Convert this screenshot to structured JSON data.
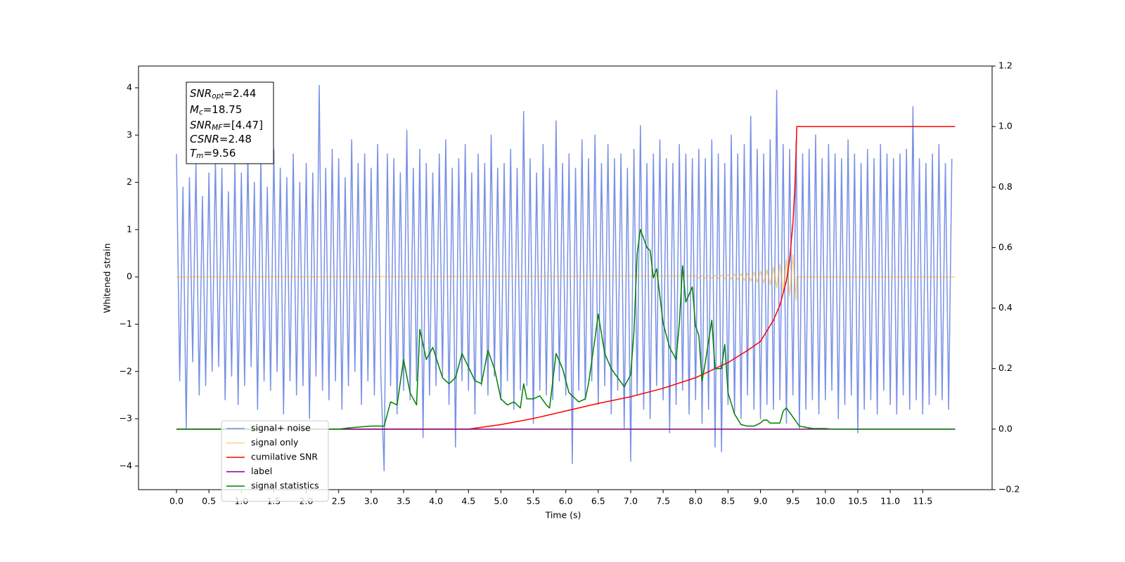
{
  "chart_data": {
    "type": "line",
    "xlabel": "Time (s)",
    "ylabel": "Whitened strain",
    "xlim": [
      -0.585,
      12.57
    ],
    "ylim": [
      -4.5,
      4.46
    ],
    "y2lim": [
      -0.2,
      1.2
    ],
    "xticks": [
      {
        "value": 0,
        "label": "0.0"
      },
      0.5,
      {
        "value": 1,
        "label": "1.0"
      },
      1.5,
      {
        "value": 2,
        "label": "2.0"
      },
      2.5,
      {
        "value": 3,
        "label": "3.0"
      },
      3.5,
      {
        "value": 4,
        "label": "4.0"
      },
      4.5,
      {
        "value": 5,
        "label": "5.0"
      },
      5.5,
      {
        "value": 6,
        "label": "6.0"
      },
      6.5,
      {
        "value": 7,
        "label": "7.0"
      },
      7.5,
      {
        "value": 8,
        "label": "8.0"
      },
      8.5,
      {
        "value": 9,
        "label": "9.0"
      },
      9.5,
      {
        "value": 10,
        "label": "10.0"
      },
      10.5,
      {
        "value": 11,
        "label": "11.0"
      },
      11.5
    ],
    "yticks": [
      {
        "value": -4,
        "label": "−4"
      },
      {
        "value": -3,
        "label": "−3"
      },
      {
        "value": -2,
        "label": "−2"
      },
      {
        "value": -1,
        "label": "−1"
      },
      0,
      1,
      2,
      3,
      4
    ],
    "y2ticks": [
      {
        "value": -0.2,
        "label": "−0.2"
      },
      {
        "value": 0,
        "label": "0.0"
      },
      0.2,
      0.4,
      0.6,
      0.8,
      {
        "value": 1,
        "label": "1.0"
      },
      1.2
    ],
    "legend": "lower left",
    "annotations": [
      {
        "base": "SNR",
        "sub": "opt",
        "rest": "=2.44"
      },
      {
        "base": "M",
        "sub": "c",
        "rest": "=18.75"
      },
      {
        "base": "SNR",
        "sub": "MF",
        "rest": "=[4.47]"
      },
      {
        "base": "CSNR",
        "rest": "=2.48"
      },
      {
        "base": "T",
        "sub": "m",
        "rest": "=9.56"
      }
    ],
    "series": [
      {
        "name": "signal+ noise",
        "color": "#7891e6",
        "x": [
          0,
          0.05,
          0.1,
          0.15,
          0.2,
          0.25,
          0.3,
          0.35,
          0.4,
          0.45,
          0.5,
          0.55,
          0.6,
          0.65,
          0.7,
          0.75,
          0.8,
          0.85,
          0.9,
          0.95,
          1,
          1.05,
          1.1,
          1.15,
          1.2,
          1.25,
          1.3,
          1.35,
          1.4,
          1.45,
          1.5,
          1.55,
          1.6,
          1.65,
          1.7,
          1.75,
          1.8,
          1.85,
          1.9,
          1.95,
          2,
          2.05,
          2.1,
          2.15,
          2.2,
          2.25,
          2.3,
          2.35,
          2.4,
          2.45,
          2.5,
          2.55,
          2.6,
          2.65,
          2.7,
          2.75,
          2.8,
          2.85,
          2.9,
          2.95,
          3,
          3.05,
          3.1,
          3.15,
          3.2,
          3.25,
          3.3,
          3.35,
          3.4,
          3.45,
          3.5,
          3.55,
          3.6,
          3.65,
          3.7,
          3.75,
          3.8,
          3.85,
          3.9,
          3.95,
          4,
          4.05,
          4.1,
          4.15,
          4.2,
          4.25,
          4.3,
          4.35,
          4.4,
          4.45,
          4.5,
          4.55,
          4.6,
          4.65,
          4.7,
          4.75,
          4.8,
          4.85,
          4.9,
          4.95,
          5,
          5.05,
          5.1,
          5.15,
          5.2,
          5.25,
          5.3,
          5.35,
          5.4,
          5.45,
          5.5,
          5.55,
          5.6,
          5.65,
          5.7,
          5.75,
          5.8,
          5.85,
          5.9,
          5.95,
          6,
          6.05,
          6.1,
          6.15,
          6.2,
          6.25,
          6.3,
          6.35,
          6.4,
          6.45,
          6.5,
          6.55,
          6.6,
          6.65,
          6.7,
          6.75,
          6.8,
          6.85,
          6.9,
          6.95,
          7,
          7.05,
          7.1,
          7.15,
          7.2,
          7.25,
          7.3,
          7.35,
          7.4,
          7.45,
          7.5,
          7.55,
          7.6,
          7.65,
          7.7,
          7.75,
          7.8,
          7.85,
          7.9,
          7.95,
          8,
          8.05,
          8.1,
          8.15,
          8.2,
          8.25,
          8.3,
          8.35,
          8.4,
          8.45,
          8.5,
          8.55,
          8.6,
          8.65,
          8.7,
          8.75,
          8.8,
          8.85,
          8.9,
          8.95,
          9,
          9.05,
          9.1,
          9.15,
          9.2,
          9.25,
          9.3,
          9.35,
          9.4,
          9.45,
          9.5,
          9.55,
          9.6,
          9.65,
          9.7,
          9.75,
          9.8,
          9.85,
          9.9,
          9.95,
          10,
          10.05,
          10.1,
          10.15,
          10.2,
          10.25,
          10.3,
          10.35,
          10.4,
          10.45,
          10.5,
          10.55,
          10.6,
          10.65,
          10.7,
          10.75,
          10.8,
          10.85,
          10.9,
          10.95,
          11,
          11.05,
          11.1,
          11.15,
          11.2,
          11.25,
          11.3,
          11.35,
          11.4,
          11.45,
          11.5,
          11.55,
          11.6,
          11.65,
          11.7,
          11.75,
          11.8,
          11.85,
          11.9,
          11.95
        ],
        "values": [
          2.6,
          -2.2,
          1.9,
          -3.2,
          2.1,
          -1.8,
          2.4,
          -2.5,
          1.7,
          -2.3,
          2.2,
          -2.0,
          2.5,
          -1.9,
          2.3,
          -2.6,
          1.8,
          -2.1,
          2.4,
          -2.7,
          2.2,
          -2.3,
          2.6,
          -1.9,
          2.0,
          -2.8,
          2.5,
          -2.2,
          1.9,
          -2.4,
          2.7,
          -2.0,
          2.3,
          -2.9,
          2.1,
          -2.2,
          2.6,
          -2.5,
          2.0,
          -2.3,
          2.4,
          -3.0,
          2.2,
          -2.1,
          4.05,
          -2.4,
          2.3,
          -2.6,
          2.7,
          -2.2,
          2.5,
          -2.8,
          2.1,
          -2.3,
          2.9,
          -2.0,
          2.4,
          -2.7,
          2.6,
          -2.2,
          2.3,
          -2.5,
          2.8,
          -2.1,
          -4.1,
          2.6,
          -2.3,
          2.5,
          -2.9,
          2.2,
          -2.4,
          3.1,
          -2.6,
          2.3,
          -2.2,
          2.7,
          -3.4,
          2.4,
          -2.5,
          2.2,
          -2.3,
          2.6,
          -2.1,
          2.9,
          -2.7,
          2.3,
          -3.6,
          2.5,
          -2.2,
          2.8,
          -2.4,
          2.2,
          -2.9,
          2.6,
          -2.3,
          2.4,
          -2.5,
          3.0,
          -2.1,
          2.3,
          -2.6,
          2.4,
          -2.2,
          2.7,
          -2.8,
          2.3,
          -2.4,
          3.5,
          -2.3,
          2.5,
          -3.1,
          2.2,
          -2.4,
          2.8,
          -2.5,
          2.3,
          -2.6,
          3.3,
          -2.2,
          2.4,
          -2.5,
          2.6,
          -3.95,
          2.3,
          -2.4,
          2.9,
          -2.6,
          2.5,
          -2.2,
          3.0,
          -2.7,
          2.4,
          -2.3,
          2.8,
          -2.9,
          2.5,
          -2.4,
          2.6,
          -3.2,
          2.3,
          -3.9,
          2.7,
          -2.5,
          3.2,
          -2.8,
          2.4,
          -3.0,
          2.6,
          -2.3,
          2.9,
          -2.6,
          2.5,
          -3.3,
          2.4,
          -2.7,
          2.8,
          -2.4,
          2.6,
          -2.9,
          2.5,
          -2.6,
          2.7,
          -3.1,
          2.5,
          -2.8,
          2.9,
          -3.6,
          2.6,
          -3.7,
          2.4,
          -2.7,
          3.0,
          -2.9,
          2.6,
          -3.0,
          2.8,
          -2.5,
          3.4,
          -2.8,
          2.7,
          -3.0,
          2.6,
          -2.7,
          2.9,
          -2.8,
          3.95,
          -2.6,
          2.8,
          -3.1,
          2.7,
          -2.5,
          2.9,
          -3.2,
          2.6,
          -2.8,
          2.7,
          -2.6,
          3.0,
          -2.9,
          2.5,
          -2.6,
          2.8,
          -2.4,
          2.6,
          -3.0,
          2.5,
          -2.7,
          2.9,
          -2.5,
          2.6,
          -3.3,
          2.4,
          -2.8,
          2.7,
          -2.6,
          2.5,
          -2.9,
          2.8,
          -2.4,
          2.6,
          -2.7,
          2.5,
          -2.9,
          2.6,
          -2.5,
          2.7,
          -2.8,
          3.6,
          -2.6,
          2.5,
          -2.9,
          2.4,
          -2.7,
          2.6,
          -2.5,
          2.8,
          -2.6,
          2.4,
          -2.8,
          2.5
        ]
      },
      {
        "name": "signal only",
        "color": "#ffa500",
        "alpha": 0.5,
        "x": [
          0,
          8,
          8.05,
          8.1,
          8.15,
          8.2,
          8.25,
          8.3,
          8.35,
          8.4,
          8.45,
          8.5,
          8.55,
          8.6,
          8.65,
          8.7,
          8.75,
          8.8,
          8.85,
          8.9,
          8.95,
          9,
          9.05,
          9.1,
          9.15,
          9.2,
          9.25,
          9.3,
          9.35,
          9.4,
          9.45,
          9.5,
          9.55,
          9.56,
          12
        ],
        "values": [
          0,
          0.02,
          -0.02,
          0.025,
          -0.025,
          0.03,
          -0.03,
          0.035,
          -0.035,
          0.04,
          -0.04,
          0.05,
          -0.05,
          0.06,
          -0.06,
          0.07,
          -0.075,
          0.08,
          -0.09,
          0.1,
          -0.11,
          0.12,
          -0.13,
          0.15,
          -0.17,
          0.2,
          -0.23,
          0.27,
          -0.31,
          0.36,
          -0.41,
          0.47,
          -0.5,
          0,
          0
        ]
      },
      {
        "name": "cumilative SNR",
        "color": "#ff0000",
        "axis": "y2",
        "x": [
          0,
          4.5,
          5,
          5.5,
          6,
          6.5,
          7,
          7.5,
          8,
          8.5,
          8.8,
          9,
          9.2,
          9.3,
          9.4,
          9.45,
          9.5,
          9.53,
          9.55,
          9.56,
          12
        ],
        "values": [
          0,
          0,
          0.015,
          0.035,
          0.06,
          0.085,
          0.107,
          0.135,
          0.17,
          0.22,
          0.26,
          0.29,
          0.36,
          0.41,
          0.49,
          0.56,
          0.68,
          0.8,
          0.92,
          1,
          1
        ]
      },
      {
        "name": "label",
        "color": "#800080",
        "axis": "y2",
        "x": [
          0,
          12
        ],
        "values": [
          0,
          0
        ]
      },
      {
        "name": "signal statistics",
        "color": "#008000",
        "axis": "y2",
        "x": [
          0,
          2.5,
          2.7,
          3,
          3.2,
          3.3,
          3.4,
          3.5,
          3.6,
          3.7,
          3.75,
          3.85,
          3.95,
          4.1,
          4.2,
          4.3,
          4.4,
          4.6,
          4.7,
          4.8,
          4.9,
          5,
          5.1,
          5.2,
          5.3,
          5.35,
          5.4,
          5.5,
          5.6,
          5.7,
          5.75,
          5.85,
          5.95,
          6.05,
          6.2,
          6.3,
          6.35,
          6.45,
          6.5,
          6.6,
          6.7,
          6.8,
          6.9,
          7,
          7.05,
          7.1,
          7.15,
          7.25,
          7.3,
          7.35,
          7.4,
          7.5,
          7.6,
          7.7,
          7.75,
          7.8,
          7.85,
          7.95,
          8,
          8.05,
          8.1,
          8.15,
          8.25,
          8.3,
          8.4,
          8.45,
          8.5,
          8.6,
          8.7,
          8.8,
          8.9,
          9,
          9.05,
          9.1,
          9.15,
          9.2,
          9.3,
          9.35,
          9.4,
          9.5,
          9.6,
          9.8,
          10,
          10.1,
          12
        ],
        "values": [
          0,
          0,
          0.005,
          0.01,
          0.01,
          0.09,
          0.08,
          0.23,
          0.12,
          0.08,
          0.33,
          0.23,
          0.27,
          0.17,
          0.15,
          0.17,
          0.25,
          0.16,
          0.15,
          0.26,
          0.2,
          0.1,
          0.08,
          0.09,
          0.07,
          0.15,
          0.1,
          0.1,
          0.11,
          0.08,
          0.07,
          0.25,
          0.2,
          0.12,
          0.09,
          0.1,
          0.15,
          0.3,
          0.38,
          0.25,
          0.2,
          0.17,
          0.14,
          0.18,
          0.32,
          0.58,
          0.66,
          0.6,
          0.59,
          0.5,
          0.53,
          0.35,
          0.27,
          0.23,
          0.35,
          0.54,
          0.42,
          0.47,
          0.34,
          0.31,
          0.16,
          0.22,
          0.36,
          0.2,
          0.2,
          0.28,
          0.12,
          0.05,
          0.015,
          0.01,
          0.01,
          0.02,
          0.03,
          0.03,
          0.02,
          0.02,
          0.02,
          0.06,
          0.07,
          0.04,
          0.01,
          0.002,
          0.002,
          0,
          0
        ]
      }
    ]
  }
}
